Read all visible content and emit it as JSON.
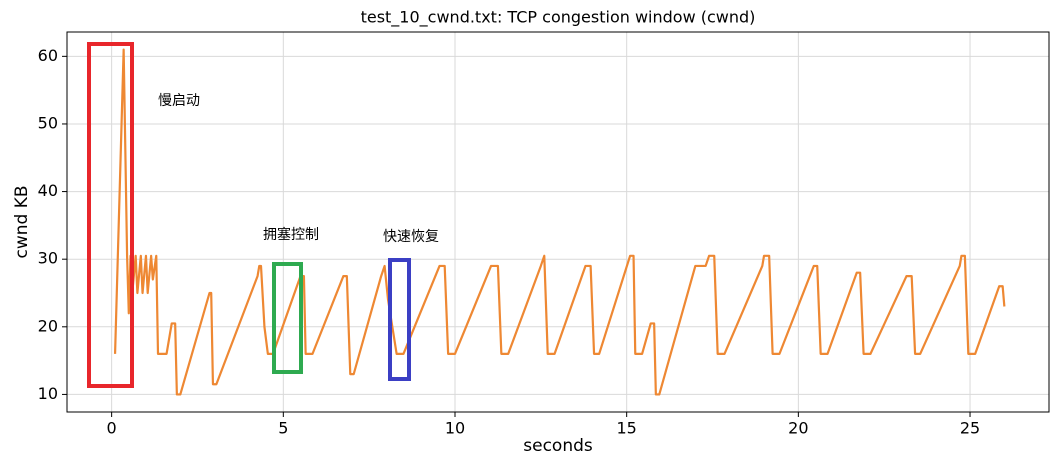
{
  "chart_data": {
    "type": "line",
    "title": "test_10_cwnd.txt: TCP congestion window (cwnd)",
    "xlabel": "seconds",
    "ylabel": "cwnd KB",
    "annotations": [
      "慢启动",
      "拥塞控制",
      "快速恢复"
    ],
    "color": "#ee8833",
    "grid": true,
    "xlim": [
      -1.3,
      27.3
    ],
    "ylim": [
      7.4,
      63.6
    ],
    "xticks": [
      0,
      5,
      10,
      15,
      20,
      25
    ],
    "yticks": [
      10,
      20,
      30,
      40,
      50,
      60
    ],
    "x": [
      0.1,
      0.35,
      0.45,
      0.5,
      0.55,
      0.6,
      0.7,
      0.75,
      0.85,
      0.9,
      1.0,
      1.05,
      1.15,
      1.2,
      1.3,
      1.35,
      1.6,
      1.75,
      1.85,
      1.9,
      2.0,
      2.85,
      2.9,
      2.95,
      3.05,
      4.25,
      4.3,
      4.35,
      4.45,
      4.55,
      4.7,
      5.5,
      5.6,
      5.65,
      5.85,
      6.75,
      6.85,
      6.95,
      7.05,
      7.85,
      7.95,
      8.05,
      8.3,
      8.5,
      9.55,
      9.7,
      9.8,
      10.0,
      11.05,
      11.25,
      11.35,
      11.55,
      12.5,
      12.6,
      12.7,
      12.9,
      13.8,
      13.95,
      14.05,
      14.2,
      15.1,
      15.2,
      15.25,
      15.45,
      15.7,
      15.8,
      15.85,
      15.95,
      17.0,
      17.3,
      17.4,
      17.55,
      17.65,
      17.85,
      18.95,
      19.0,
      19.15,
      19.25,
      19.45,
      20.45,
      20.55,
      20.65,
      20.85,
      21.7,
      21.8,
      21.9,
      22.1,
      23.15,
      23.3,
      23.4,
      23.55,
      24.7,
      24.75,
      24.85,
      24.95,
      25.15,
      25.85,
      25.95,
      26.0
    ],
    "values": [
      16,
      61,
      30.5,
      22,
      30.5,
      25,
      30.5,
      25,
      30.5,
      25,
      30.5,
      25,
      30.5,
      27,
      30.5,
      16,
      16,
      20.5,
      20.5,
      10,
      10,
      25,
      25,
      11.5,
      11.5,
      27.5,
      29,
      29,
      20,
      16,
      16,
      27.5,
      27.5,
      16,
      16,
      27.5,
      27.5,
      13,
      13,
      27.5,
      29,
      24,
      16,
      16,
      29,
      29,
      16,
      16,
      29,
      29,
      16,
      16,
      29,
      30.5,
      16,
      16,
      29,
      29,
      16,
      16,
      30.5,
      30.5,
      16,
      16,
      20.5,
      20.5,
      10,
      10,
      29,
      29,
      30.5,
      30.5,
      16,
      16,
      29,
      30.5,
      30.5,
      16,
      16,
      29,
      29,
      16,
      16,
      28,
      28,
      16,
      16,
      27.5,
      27.5,
      16,
      16,
      29,
      30.5,
      30.5,
      16,
      16,
      26,
      26,
      23
    ]
  }
}
